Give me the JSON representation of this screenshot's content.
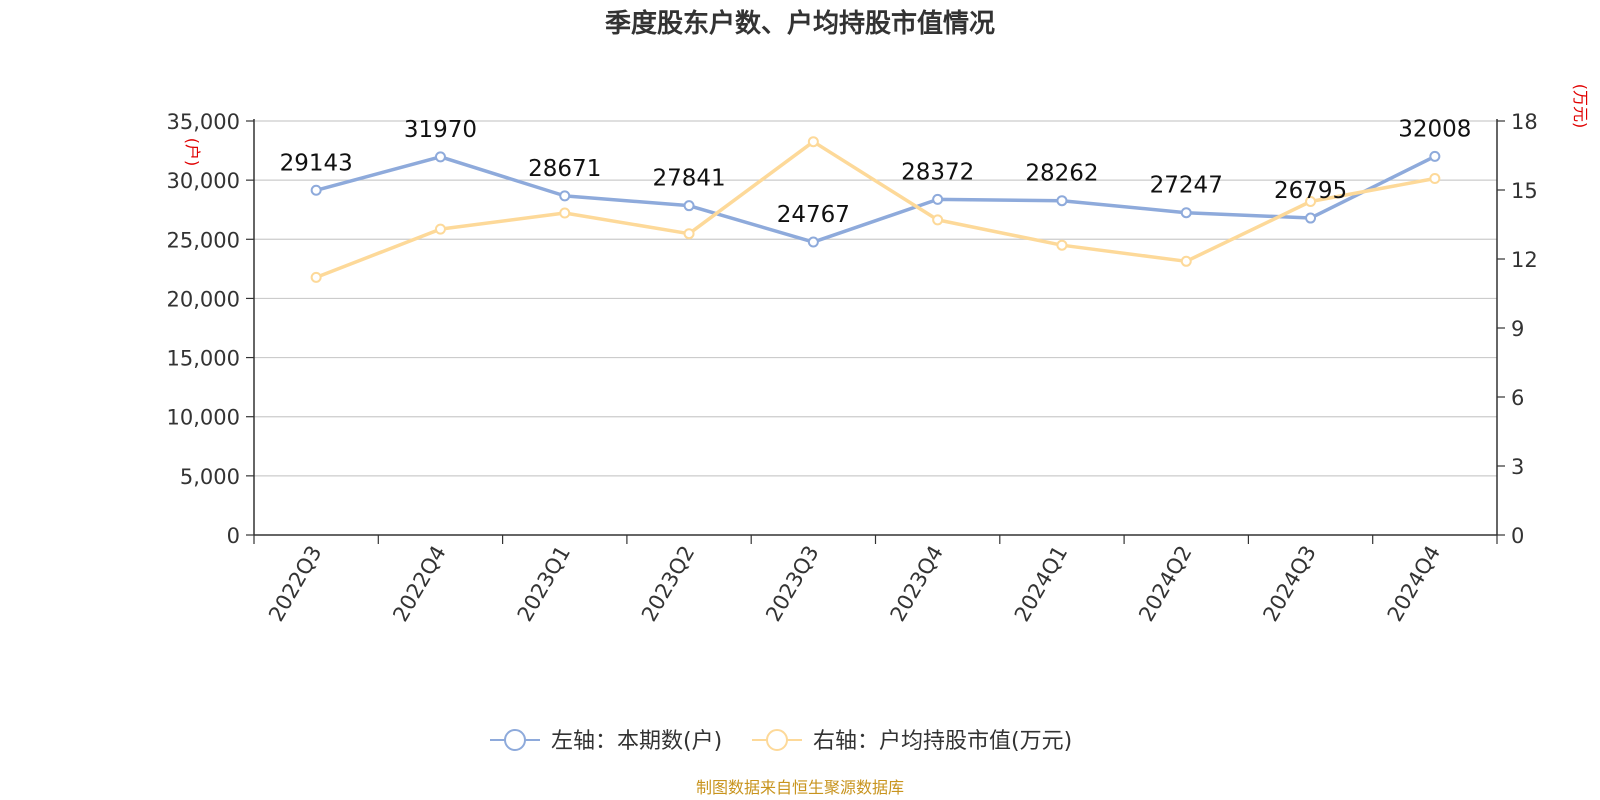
{
  "chart_data": {
    "type": "line",
    "title": "季度股东户数、户均持股市值情况",
    "categories": [
      "2022Q3",
      "2022Q4",
      "2023Q1",
      "2023Q2",
      "2023Q3",
      "2023Q4",
      "2024Q1",
      "2024Q2",
      "2024Q3",
      "2024Q4"
    ],
    "left_axis": {
      "unit": "(户)",
      "ylim": [
        0,
        35000
      ],
      "ticks": [
        0,
        5000,
        10000,
        15000,
        20000,
        25000,
        30000,
        35000
      ],
      "tick_labels": [
        "0",
        "5,000",
        "10,000",
        "15,000",
        "20,000",
        "25,000",
        "30,000",
        "35,000"
      ]
    },
    "right_axis": {
      "unit": "(万元)",
      "ylim": [
        0,
        18
      ],
      "ticks": [
        0,
        3,
        6,
        9,
        12,
        15,
        18
      ],
      "tick_labels": [
        "0",
        "3",
        "6",
        "9",
        "12",
        "15",
        "18"
      ]
    },
    "series": [
      {
        "name": "左轴：本期数(户)",
        "axis": "left",
        "color": "#8eaadb",
        "values": [
          29143,
          31970,
          28671,
          27841,
          24767,
          28372,
          28262,
          27247,
          26795,
          32008
        ],
        "labels": [
          "29143",
          "31970",
          "28671",
          "27841",
          "24767",
          "28372",
          "28262",
          "27247",
          "26795",
          "32008"
        ]
      },
      {
        "name": "右轴：户均持股市值(万元)",
        "axis": "right",
        "color": "#fdd999",
        "values": [
          11.2,
          13.3,
          14.0,
          13.1,
          17.1,
          13.7,
          12.6,
          11.9,
          14.5,
          15.5
        ]
      }
    ],
    "grid": true,
    "legend_position": "bottom"
  },
  "footer": {
    "source": "制图数据来自恒生聚源数据库"
  }
}
